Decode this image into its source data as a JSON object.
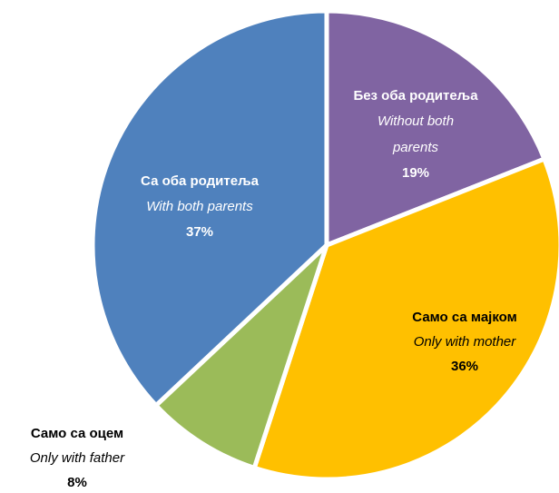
{
  "chart_data": {
    "type": "pie",
    "categories": [
      "Без оба родитеља",
      "Само са мајком",
      "Само са оцем",
      "Са оба родитеља"
    ],
    "categories_en": [
      "Without both parents",
      "Only with mother",
      "Only with father",
      "With both parents"
    ],
    "values": [
      19,
      36,
      8,
      37
    ],
    "value_labels": [
      "19%",
      "36%",
      "8%",
      "37%"
    ],
    "colors": [
      "#8064a2",
      "#ffc000",
      "#9bbb59",
      "#4f81bd"
    ]
  }
}
